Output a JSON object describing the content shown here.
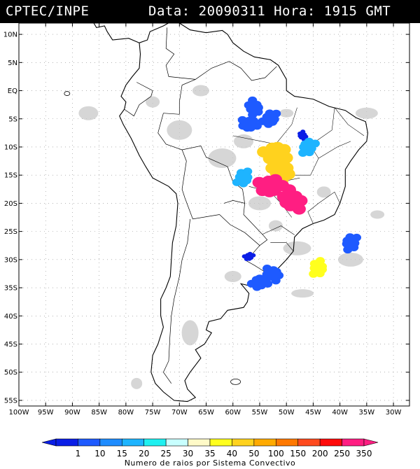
{
  "header": {
    "source": "CPTEC/INPE",
    "datetime": "Data: 20090311 Hora: 1915 GMT"
  },
  "map": {
    "lat_labels": [
      "10N",
      "5N",
      "EQ",
      "5S",
      "10S",
      "15S",
      "20S",
      "25S",
      "30S",
      "35S",
      "40S",
      "45S",
      "50S",
      "55S"
    ],
    "lon_labels": [
      "100W",
      "95W",
      "90W",
      "85W",
      "80W",
      "75W",
      "70W",
      "65W",
      "60W",
      "55W",
      "50W",
      "45W",
      "40W",
      "35W",
      "30W"
    ],
    "lat_range": [
      -56,
      12
    ],
    "lon_range": [
      -100,
      -27
    ]
  },
  "colorbar": {
    "title": "Numero de raios por Sistema Convectivo",
    "ticks": [
      "1",
      "10",
      "15",
      "20",
      "25",
      "30",
      "35",
      "40",
      "50",
      "100",
      "150",
      "200",
      "250",
      "350"
    ],
    "colors": [
      "#0a1ee6",
      "#1e5aff",
      "#1e8cff",
      "#1eb4ff",
      "#1ef0f0",
      "#c8ffff",
      "#fffac8",
      "#ffff1e",
      "#ffd21e",
      "#ffaa00",
      "#ff7800",
      "#ff4a1e",
      "#ff0a0a",
      "#ff1e82"
    ]
  },
  "systems": [
    {
      "lon": -56,
      "lat": -3,
      "rank": 1
    },
    {
      "lon": -53,
      "lat": -5,
      "rank": 1
    },
    {
      "lon": -57,
      "lat": -6,
      "rank": 1
    },
    {
      "lon": -47,
      "lat": -8,
      "rank": 0
    },
    {
      "lon": -46,
      "lat": -10,
      "rank": 3
    },
    {
      "lon": -52,
      "lat": -11,
      "rank": 8
    },
    {
      "lon": -51,
      "lat": -14,
      "rank": 8
    },
    {
      "lon": -58,
      "lat": -15.5,
      "rank": 3
    },
    {
      "lon": -53,
      "lat": -17,
      "rank": 13
    },
    {
      "lon": -49,
      "lat": -19.5,
      "rank": 13
    },
    {
      "lon": -38,
      "lat": -27,
      "rank": 1
    },
    {
      "lon": -55,
      "lat": -34,
      "rank": 1
    },
    {
      "lon": -52.5,
      "lat": -32.5,
      "rank": 1
    },
    {
      "lon": -44,
      "lat": -31.5,
      "rank": 7
    },
    {
      "lon": -57,
      "lat": -29.5,
      "rank": 0
    }
  ]
}
